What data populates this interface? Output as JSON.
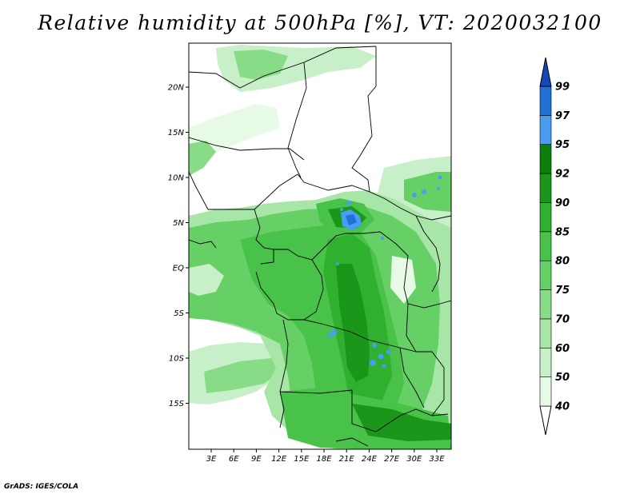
{
  "title": "Relative humidity at 500hPa [%], VT: 2020032100",
  "footer": "GrADS: IGES/COLA",
  "map": {
    "lat_labels": [
      "20N",
      "15N",
      "10N",
      "5N",
      "EQ",
      "5S",
      "10S",
      "15S"
    ],
    "lon_labels": [
      "3E",
      "6E",
      "9E",
      "12E",
      "15E",
      "18E",
      "21E",
      "24E",
      "27E",
      "30E",
      "33E"
    ]
  },
  "colorbar": {
    "levels": [
      "40",
      "50",
      "60",
      "70",
      "75",
      "80",
      "85",
      "90",
      "92",
      "95",
      "97",
      "99"
    ],
    "colors": [
      "#ffffff",
      "#e6fae6",
      "#c8f0c8",
      "#a8e6a8",
      "#88dc88",
      "#66d066",
      "#48c248",
      "#2fb02f",
      "#1a961a",
      "#0a800a",
      "#4a9cf0",
      "#2070d8",
      "#1448b8"
    ]
  }
}
